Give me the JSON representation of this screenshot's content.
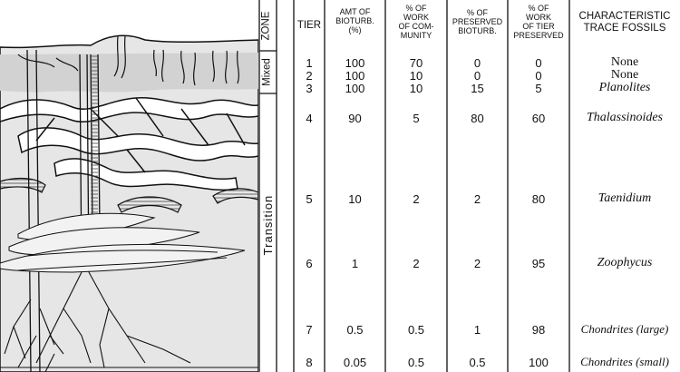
{
  "headers": {
    "zone": "ZONE",
    "tier": "TIER",
    "amt_bioturb": [
      "AMT OF",
      "BIOTURB.",
      "(%)"
    ],
    "pct_work_community": [
      "% OF",
      "WORK",
      "OF COM-",
      "MUNITY"
    ],
    "pct_preserved_bioturb": [
      "% OF",
      "PRESERVED",
      "BIOTURB."
    ],
    "pct_work_tier_preserved": [
      "% OF",
      "WORK",
      "OF TIER",
      "PRESERVED"
    ],
    "trace_fossils": [
      "CHARACTERISTIC",
      "TRACE FOSSILS"
    ]
  },
  "zones": {
    "mixed": "Mixed",
    "transition": "Transition"
  },
  "rows": [
    {
      "tier": "1",
      "amt": "100",
      "work_comm": "70",
      "preserved": "0",
      "work_tier": "0",
      "fossil": "None",
      "italic": false
    },
    {
      "tier": "2",
      "amt": "100",
      "work_comm": "10",
      "preserved": "0",
      "work_tier": "0",
      "fossil": "None",
      "italic": false
    },
    {
      "tier": "3",
      "amt": "100",
      "work_comm": "10",
      "preserved": "15",
      "work_tier": "5",
      "fossil": "Planolites",
      "italic": true
    },
    {
      "tier": "4",
      "amt": "90",
      "work_comm": "5",
      "preserved": "80",
      "work_tier": "60",
      "fossil": "Thalassinoides",
      "italic": true
    },
    {
      "tier": "5",
      "amt": "10",
      "work_comm": "2",
      "preserved": "2",
      "work_tier": "80",
      "fossil": "Taenidium",
      "italic": true
    },
    {
      "tier": "6",
      "amt": "1",
      "work_comm": "2",
      "preserved": "2",
      "work_tier": "95",
      "fossil": "Zoophycus",
      "italic": true
    },
    {
      "tier": "7",
      "amt": "0.5",
      "work_comm": "0.5",
      "preserved": "1",
      "work_tier": "98",
      "fossil": "Chondrites (large)",
      "italic": true
    },
    {
      "tier": "8",
      "amt": "0.05",
      "work_comm": "0.5",
      "preserved": "0.5",
      "work_tier": "100",
      "fossil": "Chondrites (small)",
      "italic": true
    }
  ]
}
